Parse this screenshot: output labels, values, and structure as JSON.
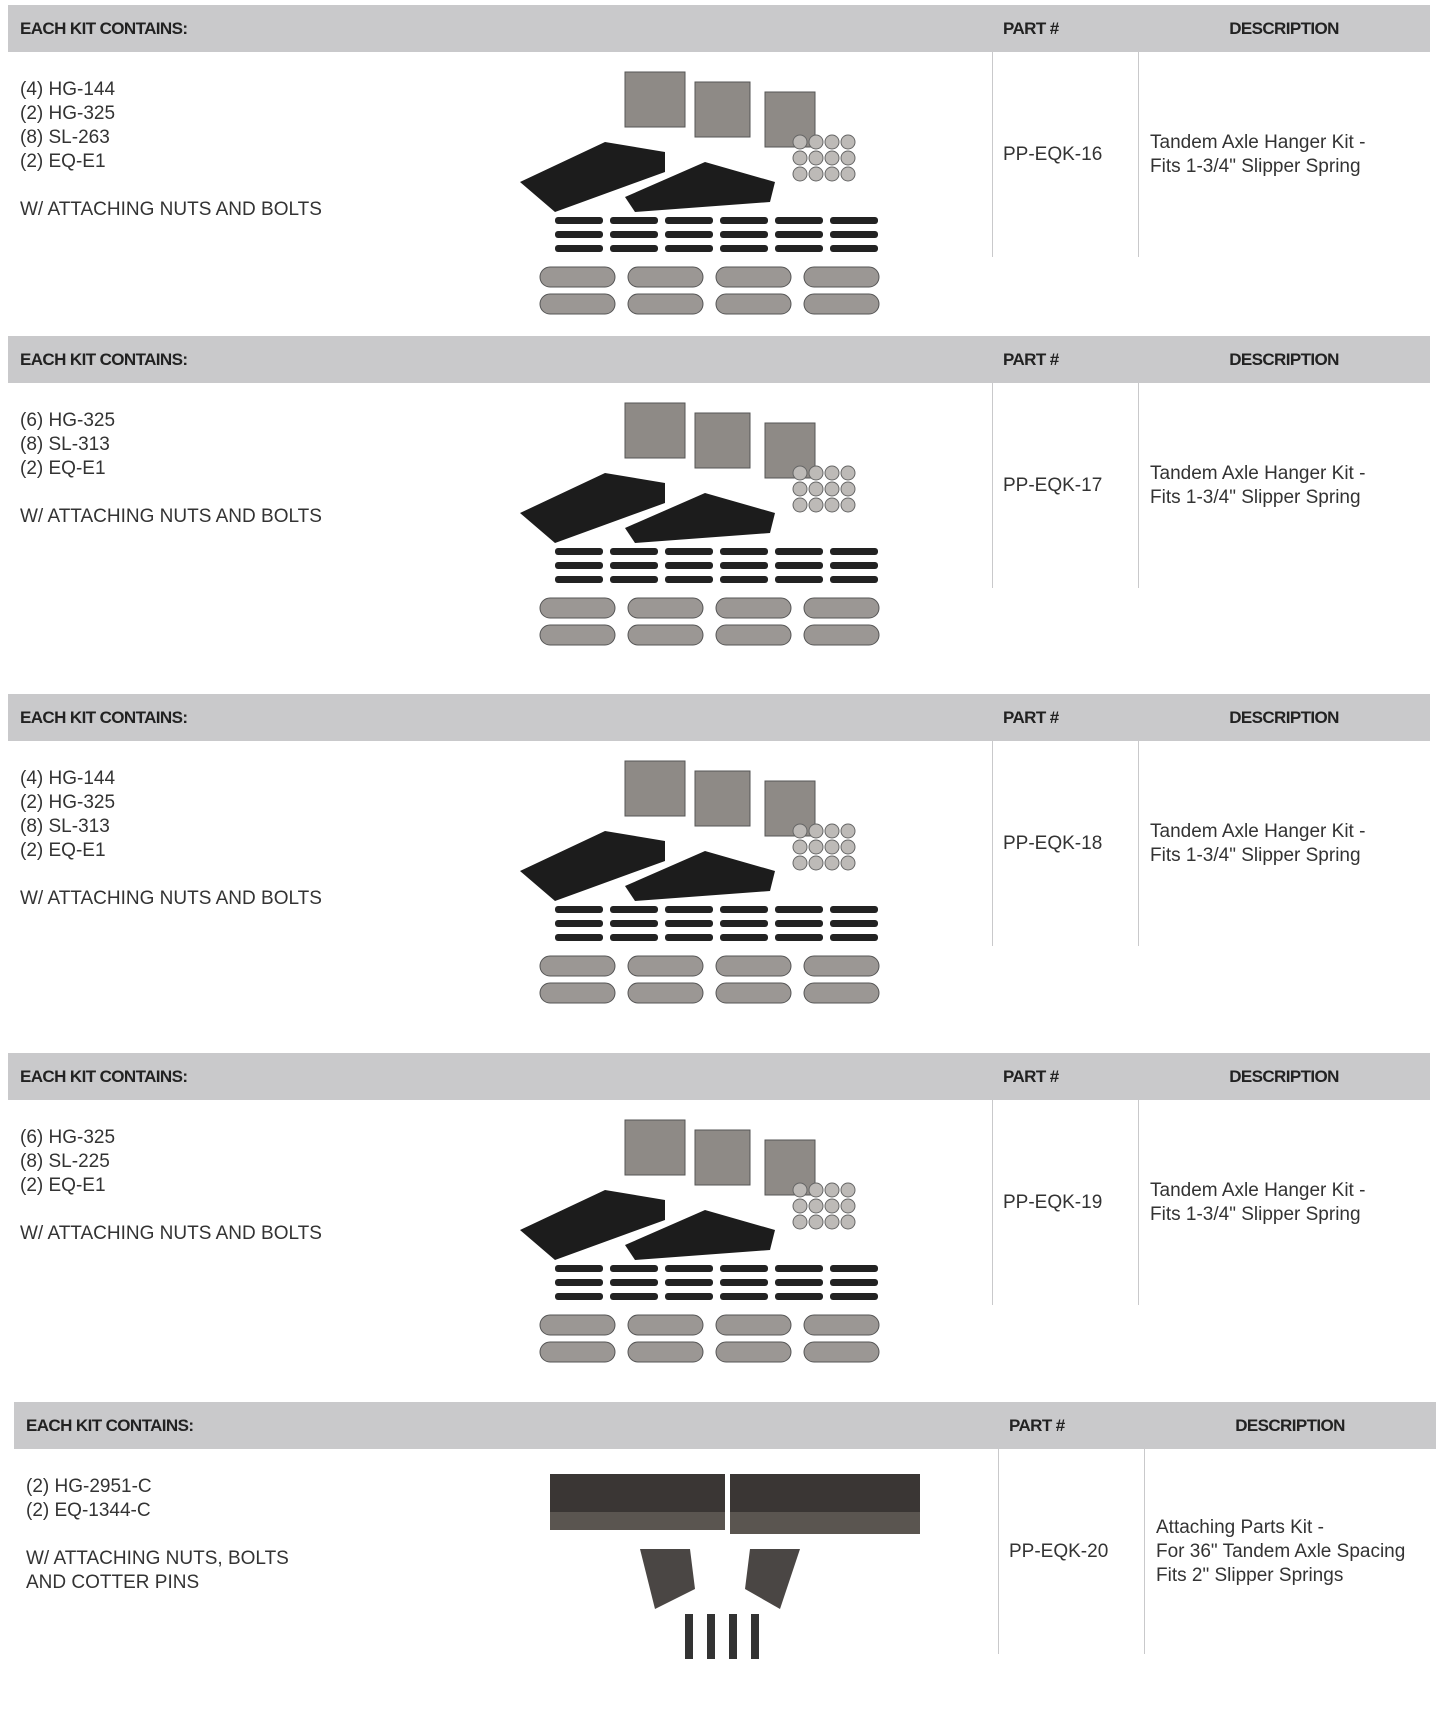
{
  "kits": [
    {
      "header": {
        "contents": "EACH KIT CONTAINS:",
        "part": "PART #",
        "description": "DESCRIPTION"
      },
      "contents": [
        "(4) HG-144",
        "(2) HG-325",
        "(8) SL-263",
        "(2) EQ-E1"
      ],
      "note": [
        "W/ ATTACHING NUTS AND BOLTS"
      ],
      "part": "PP-EQK-16",
      "description": [
        "Tandem Axle Hanger Kit -",
        "Fits 1-3/4\" Slipper Spring"
      ]
    },
    {
      "header": {
        "contents": "EACH KIT CONTAINS:",
        "part": "PART #",
        "description": "DESCRIPTION"
      },
      "contents": [
        "(6) HG-325",
        "(8) SL-313",
        "(2) EQ-E1"
      ],
      "note": [
        "W/ ATTACHING NUTS AND BOLTS"
      ],
      "part": "PP-EQK-17",
      "description": [
        "Tandem Axle Hanger Kit -",
        "Fits 1-3/4\" Slipper Spring"
      ]
    },
    {
      "header": {
        "contents": "EACH KIT CONTAINS:",
        "part": "PART #",
        "description": "DESCRIPTION"
      },
      "contents": [
        "(4) HG-144",
        "(2) HG-325",
        "(8) SL-313",
        "(2) EQ-E1"
      ],
      "note": [
        "W/ ATTACHING NUTS AND BOLTS"
      ],
      "part": "PP-EQK-18",
      "description": [
        "Tandem Axle Hanger Kit -",
        "Fits 1-3/4\" Slipper Spring"
      ]
    },
    {
      "header": {
        "contents": "EACH KIT CONTAINS:",
        "part": "PART #",
        "description": "DESCRIPTION"
      },
      "contents": [
        "(6) HG-325",
        "(8) SL-225",
        "(2) EQ-E1"
      ],
      "note": [
        "W/ ATTACHING NUTS AND BOLTS"
      ],
      "part": "PP-EQK-19",
      "description": [
        "Tandem Axle Hanger Kit -",
        "Fits 1-3/4\" Slipper Spring"
      ]
    },
    {
      "header": {
        "contents": "EACH KIT CONTAINS:",
        "part": "PART #",
        "description": "DESCRIPTION"
      },
      "contents": [
        "(2) HG-2951-C",
        "(2) EQ-1344-C"
      ],
      "note": [
        "W/ ATTACHING NUTS, BOLTS",
        "AND COTTER PINS"
      ],
      "part": "PP-EQK-20",
      "description": [
        "Attaching Parts Kit -",
        "For 36\" Tandem Axle Spacing",
        "Fits 2\" Slipper Springs"
      ]
    }
  ]
}
